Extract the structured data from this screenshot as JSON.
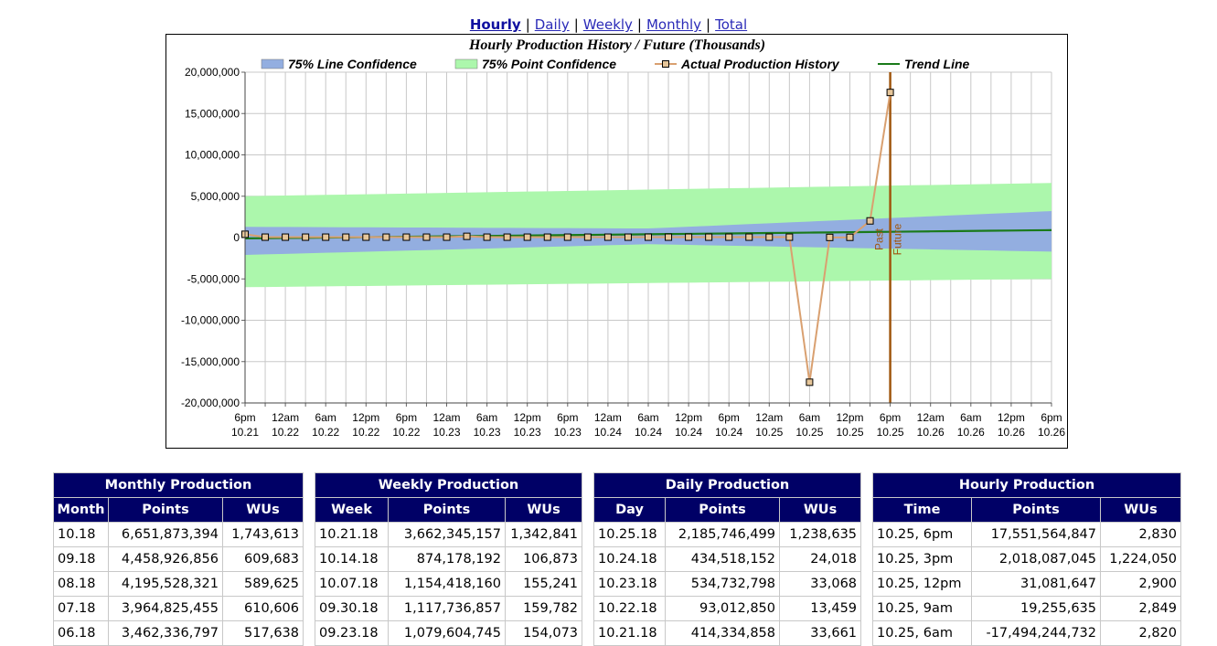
{
  "nav": {
    "links": [
      "Hourly",
      "Daily",
      "Weekly",
      "Monthly",
      "Total"
    ],
    "active": 0,
    "separator": "|"
  },
  "chart_data": {
    "type": "line",
    "title": "Hourly Production History / Future (Thousands)",
    "categories": [
      "6pm 10.21",
      null,
      "12am 10.22",
      null,
      "6am 10.22",
      null,
      "12pm 10.22",
      null,
      "6pm 10.22",
      null,
      "12am 10.23",
      null,
      "6am 10.23",
      null,
      "12pm 10.23",
      null,
      "6pm 10.23",
      null,
      "12am 10.24",
      null,
      "6am 10.24",
      null,
      "12pm 10.24",
      null,
      "6pm 10.24",
      null,
      "12am 10.25",
      null,
      "6am 10.25",
      null,
      "12pm 10.25",
      null,
      "6pm 10.25",
      null,
      "12am 10.26",
      null,
      "6am 10.26",
      null,
      "12pm 10.26",
      null,
      "6pm 10.26"
    ],
    "ylim": [
      -20000000,
      20000000
    ],
    "yticks": [
      {
        "value": -20000000,
        "label": "-20,000,000"
      },
      {
        "value": -15000000,
        "label": "-15,000,000"
      },
      {
        "value": -10000000,
        "label": "-10,000,000"
      },
      {
        "value": -5000000,
        "label": "-5,000,000"
      },
      0,
      {
        "value": 5000000,
        "label": "5,000,000"
      },
      {
        "value": 10000000,
        "label": "10,000,000"
      },
      {
        "value": 15000000,
        "label": "15,000,000"
      },
      {
        "value": 20000000,
        "label": "20,000,000"
      }
    ],
    "grid": true,
    "series": [
      {
        "name": "75% Line Confidence",
        "type": "band",
        "color": "#93aee0",
        "low": [
          -2100000,
          -2035000,
          -1970000,
          -1905000,
          -1840000,
          -1775000,
          -1710000,
          -1645000,
          -1580000,
          -1515000,
          -1450000,
          -1385000,
          -1320000,
          -1255000,
          -1190000,
          -1125000,
          -1060000,
          -995000,
          -930000,
          -865000,
          -800000,
          -845000,
          -890000,
          -935000,
          -980000,
          -1025000,
          -1070000,
          -1115000,
          -1160000,
          -1205000,
          -1250000,
          -1295000,
          -1340000,
          -1385000,
          -1430000,
          -1475000,
          -1520000,
          -1565000,
          -1610000,
          -1655000,
          -1700000
        ],
        "high": [
          1300000,
          1290000,
          1280000,
          1270000,
          1260000,
          1250000,
          1240000,
          1230000,
          1220000,
          1210000,
          1200000,
          1190000,
          1180000,
          1170000,
          1160000,
          1150000,
          1140000,
          1130000,
          1120000,
          1110000,
          1100000,
          1205000,
          1310000,
          1415000,
          1520000,
          1625000,
          1730000,
          1835000,
          1940000,
          2045000,
          2150000,
          2255000,
          2360000,
          2465000,
          2570000,
          2675000,
          2780000,
          2885000,
          2990000,
          3095000,
          3200000
        ]
      },
      {
        "name": "75% Point Confidence",
        "type": "band",
        "color": "#acf7ac",
        "low": [
          -6000000,
          -5975000,
          -5950000,
          -5925000,
          -5900000,
          -5875000,
          -5850000,
          -5825000,
          -5800000,
          -5775000,
          -5750000,
          -5725000,
          -5700000,
          -5675000,
          -5650000,
          -5625000,
          -5600000,
          -5575000,
          -5550000,
          -5525000,
          -5500000,
          -5475000,
          -5450000,
          -5425000,
          -5400000,
          -5375000,
          -5350000,
          -5325000,
          -5300000,
          -5275000,
          -5250000,
          -5225000,
          -5200000,
          -5175000,
          -5150000,
          -5125000,
          -5100000,
          -5075000,
          -5050000,
          -5025000,
          -5000000
        ],
        "high": [
          5000000,
          5040000,
          5080000,
          5120000,
          5160000,
          5200000,
          5240000,
          5280000,
          5320000,
          5360000,
          5400000,
          5440000,
          5480000,
          5520000,
          5560000,
          5600000,
          5640000,
          5680000,
          5720000,
          5760000,
          5800000,
          5840000,
          5880000,
          5920000,
          5960000,
          6000000,
          6040000,
          6080000,
          6120000,
          6160000,
          6200000,
          6240000,
          6280000,
          6320000,
          6360000,
          6400000,
          6440000,
          6480000,
          6520000,
          6560000,
          6600000
        ]
      },
      {
        "name": "Actual Production History",
        "type": "line",
        "color": "#d9a070",
        "markers": true,
        "marker_color": "#e6c69a",
        "values": [
          400000,
          50000,
          50000,
          50000,
          50000,
          50000,
          50000,
          50000,
          50000,
          50000,
          50000,
          150000,
          50000,
          50000,
          50000,
          50000,
          50000,
          50000,
          50000,
          50000,
          50000,
          50000,
          50000,
          50000,
          50000,
          50000,
          50000,
          50000,
          -17494245,
          19256,
          31082,
          2018087,
          17551565,
          null,
          null,
          null,
          null,
          null,
          null,
          null,
          null
        ]
      },
      {
        "name": "Trend Line",
        "type": "line",
        "color": "#1a7a1a",
        "values": [
          -100000,
          -75000,
          -50000,
          -25000,
          0,
          25000,
          50000,
          75000,
          100000,
          125000,
          150000,
          175000,
          200000,
          225000,
          250000,
          275000,
          300000,
          325000,
          350000,
          375000,
          400000,
          425000,
          450000,
          475000,
          500000,
          525000,
          550000,
          575000,
          600000,
          625000,
          650000,
          675000,
          700000,
          725000,
          750000,
          775000,
          800000,
          825000,
          850000,
          875000,
          900000
        ]
      }
    ],
    "divider": {
      "labels": [
        "Past",
        "Future"
      ],
      "color": "#a0560f"
    }
  },
  "tables": [
    {
      "title": "Monthly Production",
      "headers": [
        "Month",
        "Points",
        "WUs"
      ],
      "rows": [
        [
          "10.18",
          "6,651,873,394",
          "1,743,613"
        ],
        [
          "09.18",
          "4,458,926,856",
          "609,683"
        ],
        [
          "08.18",
          "4,195,528,321",
          "589,625"
        ],
        [
          "07.18",
          "3,964,825,455",
          "610,606"
        ],
        [
          "06.18",
          "3,462,336,797",
          "517,638"
        ]
      ]
    },
    {
      "title": "Weekly Production",
      "headers": [
        "Week",
        "Points",
        "WUs"
      ],
      "rows": [
        [
          "10.21.18",
          "3,662,345,157",
          "1,342,841"
        ],
        [
          "10.14.18",
          "874,178,192",
          "106,873"
        ],
        [
          "10.07.18",
          "1,154,418,160",
          "155,241"
        ],
        [
          "09.30.18",
          "1,117,736,857",
          "159,782"
        ],
        [
          "09.23.18",
          "1,079,604,745",
          "154,073"
        ]
      ]
    },
    {
      "title": "Daily Production",
      "headers": [
        "Day",
        "Points",
        "WUs"
      ],
      "rows": [
        [
          "10.25.18",
          "2,185,746,499",
          "1,238,635"
        ],
        [
          "10.24.18",
          "434,518,152",
          "24,018"
        ],
        [
          "10.23.18",
          "534,732,798",
          "33,068"
        ],
        [
          "10.22.18",
          "93,012,850",
          "13,459"
        ],
        [
          "10.21.18",
          "414,334,858",
          "33,661"
        ]
      ]
    },
    {
      "title": "Hourly Production",
      "headers": [
        "Time",
        "Points",
        "WUs"
      ],
      "rows": [
        [
          "10.25, 6pm",
          "17,551,564,847",
          "2,830"
        ],
        [
          "10.25, 3pm",
          "2,018,087,045",
          "1,224,050"
        ],
        [
          "10.25, 12pm",
          "31,081,647",
          "2,900"
        ],
        [
          "10.25, 9am",
          "19,255,635",
          "2,849"
        ],
        [
          "10.25, 6am",
          "-17,494,244,732",
          "2,820"
        ]
      ]
    }
  ]
}
